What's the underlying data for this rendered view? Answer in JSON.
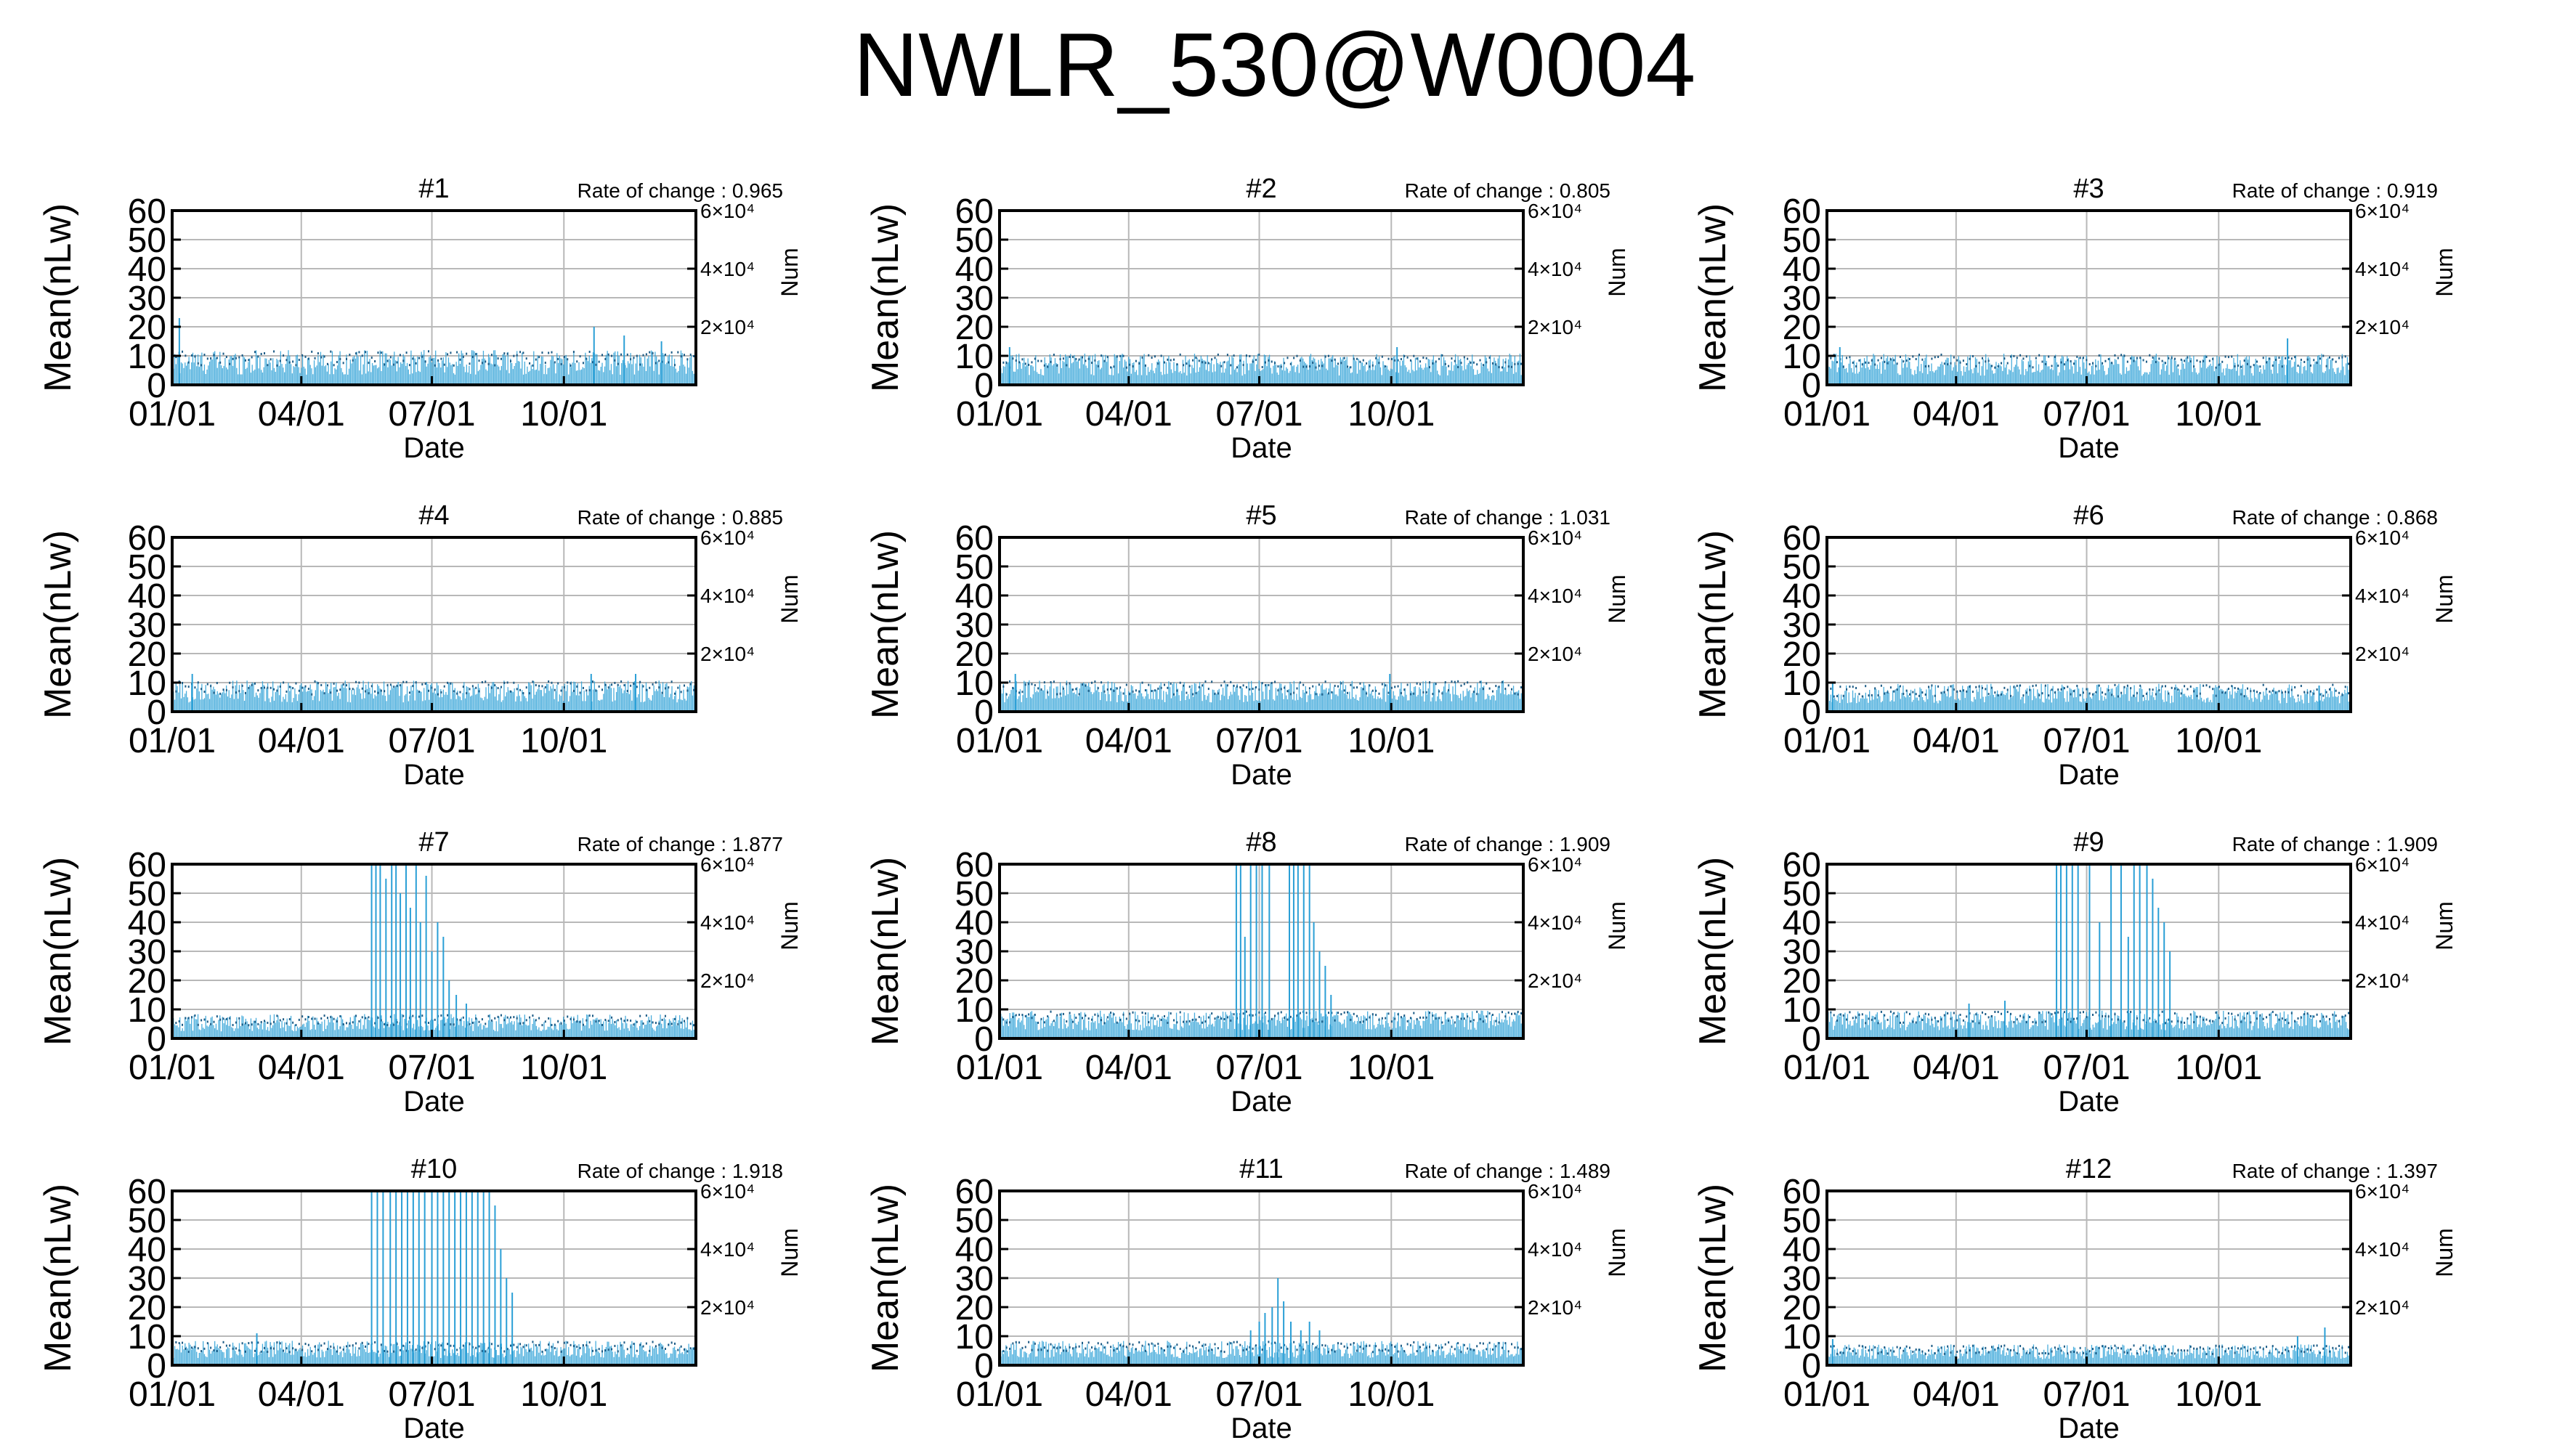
{
  "figure_title": "NWLR_530@W0004",
  "colors": {
    "series": "#2a9fd6",
    "grid": "#b8b8b8",
    "axis": "#000000",
    "baseline": "#1a5a85"
  },
  "chart_data": [
    {
      "type": "bar",
      "title": "#1",
      "annotation": "Rate of change : 0.965",
      "xlabel": "Date",
      "ylabel": "Mean(nLw)",
      "y2label": "Num",
      "ylim": [
        0,
        60
      ],
      "yticks": [
        "0",
        "10",
        "20",
        "30",
        "40",
        "50",
        "60"
      ],
      "y2ticks": [
        "2×10⁴",
        "4×10⁴",
        "6×10⁴"
      ],
      "xticks": [
        "01/01",
        "04/01",
        "07/01",
        "10/01"
      ],
      "grid": true,
      "baseline": 10,
      "spikes": [
        {
          "x": "01/06",
          "y": 23
        },
        {
          "x": "10/22",
          "y": 20
        },
        {
          "x": "11/12",
          "y": 17
        },
        {
          "x": "12/08",
          "y": 15
        }
      ]
    },
    {
      "type": "bar",
      "title": "#2",
      "annotation": "Rate of change : 0.805",
      "xlabel": "Date",
      "ylabel": "Mean(nLw)",
      "y2label": "Num",
      "ylim": [
        0,
        60
      ],
      "yticks": [
        "0",
        "10",
        "20",
        "30",
        "40",
        "50",
        "60"
      ],
      "y2ticks": [
        "2×10⁴",
        "4×10⁴",
        "6×10⁴"
      ],
      "xticks": [
        "01/01",
        "04/01",
        "07/01",
        "10/01"
      ],
      "grid": true,
      "baseline": 9,
      "spikes": [
        {
          "x": "01/08",
          "y": 13
        },
        {
          "x": "10/05",
          "y": 13
        }
      ]
    },
    {
      "type": "bar",
      "title": "#3",
      "annotation": "Rate of change : 0.919",
      "xlabel": "Date",
      "ylabel": "Mean(nLw)",
      "y2label": "Num",
      "ylim": [
        0,
        60
      ],
      "yticks": [
        "0",
        "10",
        "20",
        "30",
        "40",
        "50",
        "60"
      ],
      "y2ticks": [
        "2×10⁴",
        "4×10⁴",
        "6×10⁴"
      ],
      "xticks": [
        "01/01",
        "04/01",
        "07/01",
        "10/01"
      ],
      "grid": true,
      "baseline": 9,
      "spikes": [
        {
          "x": "01/10",
          "y": 13
        },
        {
          "x": "11/18",
          "y": 16
        }
      ]
    },
    {
      "type": "bar",
      "title": "#4",
      "annotation": "Rate of change : 0.885",
      "xlabel": "Date",
      "ylabel": "Mean(nLw)",
      "y2label": "Num",
      "ylim": [
        0,
        60
      ],
      "yticks": [
        "0",
        "10",
        "20",
        "30",
        "40",
        "50",
        "60"
      ],
      "y2ticks": [
        "2×10⁴",
        "4×10⁴",
        "6×10⁴"
      ],
      "xticks": [
        "01/01",
        "04/01",
        "07/01",
        "10/01"
      ],
      "grid": true,
      "baseline": 9,
      "spikes": [
        {
          "x": "01/15",
          "y": 13
        },
        {
          "x": "10/20",
          "y": 13
        },
        {
          "x": "11/20",
          "y": 13
        }
      ]
    },
    {
      "type": "bar",
      "title": "#5",
      "annotation": "Rate of change : 1.031",
      "xlabel": "Date",
      "ylabel": "Mean(nLw)",
      "y2label": "Num",
      "ylim": [
        0,
        60
      ],
      "yticks": [
        "0",
        "10",
        "20",
        "30",
        "40",
        "50",
        "60"
      ],
      "y2ticks": [
        "2×10⁴",
        "4×10⁴",
        "6×10⁴"
      ],
      "xticks": [
        "01/01",
        "04/01",
        "07/01",
        "10/01"
      ],
      "grid": true,
      "baseline": 9,
      "spikes": [
        {
          "x": "01/12",
          "y": 13
        },
        {
          "x": "09/30",
          "y": 13
        }
      ]
    },
    {
      "type": "bar",
      "title": "#6",
      "annotation": "Rate of change : 0.868",
      "xlabel": "Date",
      "ylabel": "Mean(nLw)",
      "y2label": "Num",
      "ylim": [
        0,
        60
      ],
      "yticks": [
        "0",
        "10",
        "20",
        "30",
        "40",
        "50",
        "60"
      ],
      "y2ticks": [
        "2×10⁴",
        "4×10⁴",
        "6×10⁴"
      ],
      "xticks": [
        "01/01",
        "04/01",
        "07/01",
        "10/01"
      ],
      "grid": true,
      "baseline": 8,
      "spikes": [
        {
          "x": "01/05",
          "y": 10
        },
        {
          "x": "12/10",
          "y": 9
        }
      ]
    },
    {
      "type": "bar",
      "title": "#7",
      "annotation": "Rate of change : 1.877",
      "xlabel": "Date",
      "ylabel": "Mean(nLw)",
      "y2label": "Num",
      "ylim": [
        0,
        60
      ],
      "yticks": [
        "0",
        "10",
        "20",
        "30",
        "40",
        "50",
        "60"
      ],
      "y2ticks": [
        "2×10⁴",
        "4×10⁴",
        "6×10⁴"
      ],
      "xticks": [
        "01/01",
        "04/01",
        "07/01",
        "10/01"
      ],
      "grid": true,
      "baseline": 7,
      "spikes": [
        {
          "x": "05/20",
          "y": 60
        },
        {
          "x": "05/23",
          "y": 60
        },
        {
          "x": "05/26",
          "y": 60
        },
        {
          "x": "05/30",
          "y": 55
        },
        {
          "x": "06/03",
          "y": 60
        },
        {
          "x": "06/06",
          "y": 60
        },
        {
          "x": "06/09",
          "y": 50
        },
        {
          "x": "06/13",
          "y": 60
        },
        {
          "x": "06/16",
          "y": 45
        },
        {
          "x": "06/20",
          "y": 60
        },
        {
          "x": "06/23",
          "y": 40
        },
        {
          "x": "06/27",
          "y": 56
        },
        {
          "x": "07/01",
          "y": 30
        },
        {
          "x": "07/05",
          "y": 40
        },
        {
          "x": "07/09",
          "y": 35
        },
        {
          "x": "07/13",
          "y": 20
        },
        {
          "x": "07/18",
          "y": 15
        },
        {
          "x": "07/25",
          "y": 12
        }
      ]
    },
    {
      "type": "bar",
      "title": "#8",
      "annotation": "Rate of change : 1.909",
      "xlabel": "Date",
      "ylabel": "Mean(nLw)",
      "y2label": "Num",
      "ylim": [
        0,
        60
      ],
      "yticks": [
        "0",
        "10",
        "20",
        "30",
        "40",
        "50",
        "60"
      ],
      "y2ticks": [
        "2×10⁴",
        "4×10⁴",
        "6×10⁴"
      ],
      "xticks": [
        "01/01",
        "04/01",
        "07/01",
        "10/01"
      ],
      "grid": true,
      "baseline": 8,
      "spikes": [
        {
          "x": "06/15",
          "y": 60
        },
        {
          "x": "06/18",
          "y": 60
        },
        {
          "x": "06/21",
          "y": 35
        },
        {
          "x": "06/25",
          "y": 60
        },
        {
          "x": "06/29",
          "y": 60
        },
        {
          "x": "07/03",
          "y": 60
        },
        {
          "x": "07/08",
          "y": 60
        },
        {
          "x": "07/22",
          "y": 60
        },
        {
          "x": "07/25",
          "y": 60
        },
        {
          "x": "07/28",
          "y": 60
        },
        {
          "x": "08/01",
          "y": 60
        },
        {
          "x": "08/05",
          "y": 60
        },
        {
          "x": "08/08",
          "y": 40
        },
        {
          "x": "08/12",
          "y": 30
        },
        {
          "x": "08/16",
          "y": 25
        },
        {
          "x": "08/20",
          "y": 15
        }
      ]
    },
    {
      "type": "bar",
      "title": "#9",
      "annotation": "Rate of change : 1.909",
      "xlabel": "Date",
      "ylabel": "Mean(nLw)",
      "y2label": "Num",
      "ylim": [
        0,
        60
      ],
      "yticks": [
        "0",
        "10",
        "20",
        "30",
        "40",
        "50",
        "60"
      ],
      "y2ticks": [
        "2×10⁴",
        "4×10⁴",
        "6×10⁴"
      ],
      "xticks": [
        "01/01",
        "04/01",
        "07/01",
        "10/01"
      ],
      "grid": true,
      "baseline": 8,
      "spikes": [
        {
          "x": "04/10",
          "y": 12
        },
        {
          "x": "05/05",
          "y": 13
        },
        {
          "x": "06/10",
          "y": 60
        },
        {
          "x": "06/13",
          "y": 60
        },
        {
          "x": "06/17",
          "y": 60
        },
        {
          "x": "06/21",
          "y": 60
        },
        {
          "x": "06/25",
          "y": 60
        },
        {
          "x": "07/03",
          "y": 60
        },
        {
          "x": "07/10",
          "y": 40
        },
        {
          "x": "07/18",
          "y": 60
        },
        {
          "x": "07/25",
          "y": 60
        },
        {
          "x": "07/30",
          "y": 35
        },
        {
          "x": "08/03",
          "y": 60
        },
        {
          "x": "08/07",
          "y": 60
        },
        {
          "x": "08/12",
          "y": 60
        },
        {
          "x": "08/16",
          "y": 55
        },
        {
          "x": "08/20",
          "y": 45
        },
        {
          "x": "08/24",
          "y": 40
        },
        {
          "x": "08/28",
          "y": 30
        }
      ]
    },
    {
      "type": "bar",
      "title": "#10",
      "annotation": "Rate of change : 1.918",
      "xlabel": "Date",
      "ylabel": "Mean(nLw)",
      "y2label": "Num",
      "ylim": [
        0,
        60
      ],
      "yticks": [
        "0",
        "10",
        "20",
        "30",
        "40",
        "50",
        "60"
      ],
      "y2ticks": [
        "2×10⁴",
        "4×10⁴",
        "6×10⁴"
      ],
      "xticks": [
        "01/01",
        "04/01",
        "07/01",
        "10/01"
      ],
      "grid": true,
      "baseline": 7,
      "spikes": [
        {
          "x": "03/01",
          "y": 11
        },
        {
          "x": "05/20",
          "y": 60
        },
        {
          "x": "05/24",
          "y": 60
        },
        {
          "x": "05/28",
          "y": 60
        },
        {
          "x": "06/02",
          "y": 60
        },
        {
          "x": "06/06",
          "y": 60
        },
        {
          "x": "06/10",
          "y": 60
        },
        {
          "x": "06/14",
          "y": 60
        },
        {
          "x": "06/18",
          "y": 60
        },
        {
          "x": "06/22",
          "y": 60
        },
        {
          "x": "06/26",
          "y": 60
        },
        {
          "x": "07/01",
          "y": 60
        },
        {
          "x": "07/05",
          "y": 60
        },
        {
          "x": "07/09",
          "y": 60
        },
        {
          "x": "07/13",
          "y": 60
        },
        {
          "x": "07/17",
          "y": 60
        },
        {
          "x": "07/21",
          "y": 60
        },
        {
          "x": "07/25",
          "y": 60
        },
        {
          "x": "07/29",
          "y": 60
        },
        {
          "x": "08/02",
          "y": 60
        },
        {
          "x": "08/06",
          "y": 60
        },
        {
          "x": "08/10",
          "y": 60
        },
        {
          "x": "08/14",
          "y": 55
        },
        {
          "x": "08/18",
          "y": 40
        },
        {
          "x": "08/22",
          "y": 30
        },
        {
          "x": "08/26",
          "y": 25
        }
      ]
    },
    {
      "type": "bar",
      "title": "#11",
      "annotation": "Rate of change : 1.489",
      "xlabel": "Date",
      "ylabel": "Mean(nLw)",
      "y2label": "Num",
      "ylim": [
        0,
        60
      ],
      "yticks": [
        "0",
        "10",
        "20",
        "30",
        "40",
        "50",
        "60"
      ],
      "y2ticks": [
        "2×10⁴",
        "4×10⁴",
        "6×10⁴"
      ],
      "xticks": [
        "01/01",
        "04/01",
        "07/01",
        "10/01"
      ],
      "grid": true,
      "baseline": 7,
      "spikes": [
        {
          "x": "06/25",
          "y": 12
        },
        {
          "x": "07/01",
          "y": 15
        },
        {
          "x": "07/05",
          "y": 18
        },
        {
          "x": "07/10",
          "y": 20
        },
        {
          "x": "07/14",
          "y": 30
        },
        {
          "x": "07/18",
          "y": 22
        },
        {
          "x": "07/23",
          "y": 15
        },
        {
          "x": "07/30",
          "y": 12
        },
        {
          "x": "08/05",
          "y": 15
        },
        {
          "x": "08/12",
          "y": 12
        }
      ]
    },
    {
      "type": "bar",
      "title": "#12",
      "annotation": "Rate of change : 1.397",
      "xlabel": "Date",
      "ylabel": "Mean(nLw)",
      "y2label": "Num",
      "ylim": [
        0,
        60
      ],
      "yticks": [
        "0",
        "10",
        "20",
        "30",
        "40",
        "50",
        "60"
      ],
      "y2ticks": [
        "2×10⁴",
        "4×10⁴",
        "6×10⁴"
      ],
      "xticks": [
        "01/01",
        "04/01",
        "07/01",
        "10/01"
      ],
      "grid": true,
      "baseline": 6,
      "spikes": [
        {
          "x": "01/05",
          "y": 9
        },
        {
          "x": "11/25",
          "y": 10
        },
        {
          "x": "12/14",
          "y": 13
        }
      ]
    }
  ]
}
